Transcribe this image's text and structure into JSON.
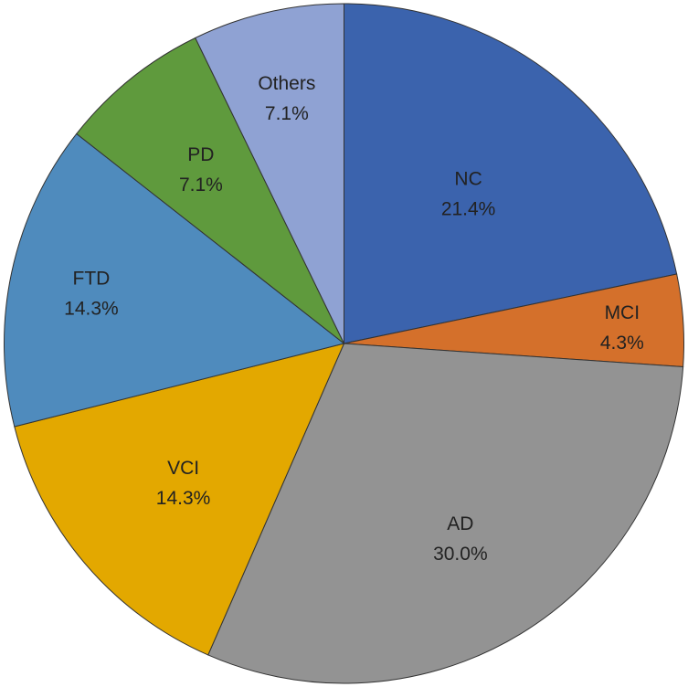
{
  "chart_data": {
    "type": "pie",
    "start_angle_deg": 0,
    "direction": "clockwise",
    "slices": [
      {
        "label": "NC",
        "value": 21.4,
        "value_label": "21.4%",
        "color": "#3b63ad"
      },
      {
        "label": "MCI",
        "value": 4.3,
        "value_label": "4.3%",
        "color": "#d4702b"
      },
      {
        "label": "AD",
        "value": 30.0,
        "value_label": "30.0%",
        "color": "#939393"
      },
      {
        "label": "VCI",
        "value": 14.3,
        "value_label": "14.3%",
        "color": "#e3a800"
      },
      {
        "label": "FTD",
        "value": 14.3,
        "value_label": "14.3%",
        "color": "#4f8bbd"
      },
      {
        "label": "PD",
        "value": 7.1,
        "value_label": "7.1%",
        "color": "#5f9a3d"
      },
      {
        "label": "Others",
        "value": 7.1,
        "value_label": "7.1%",
        "color": "#8fa2d3"
      }
    ]
  }
}
